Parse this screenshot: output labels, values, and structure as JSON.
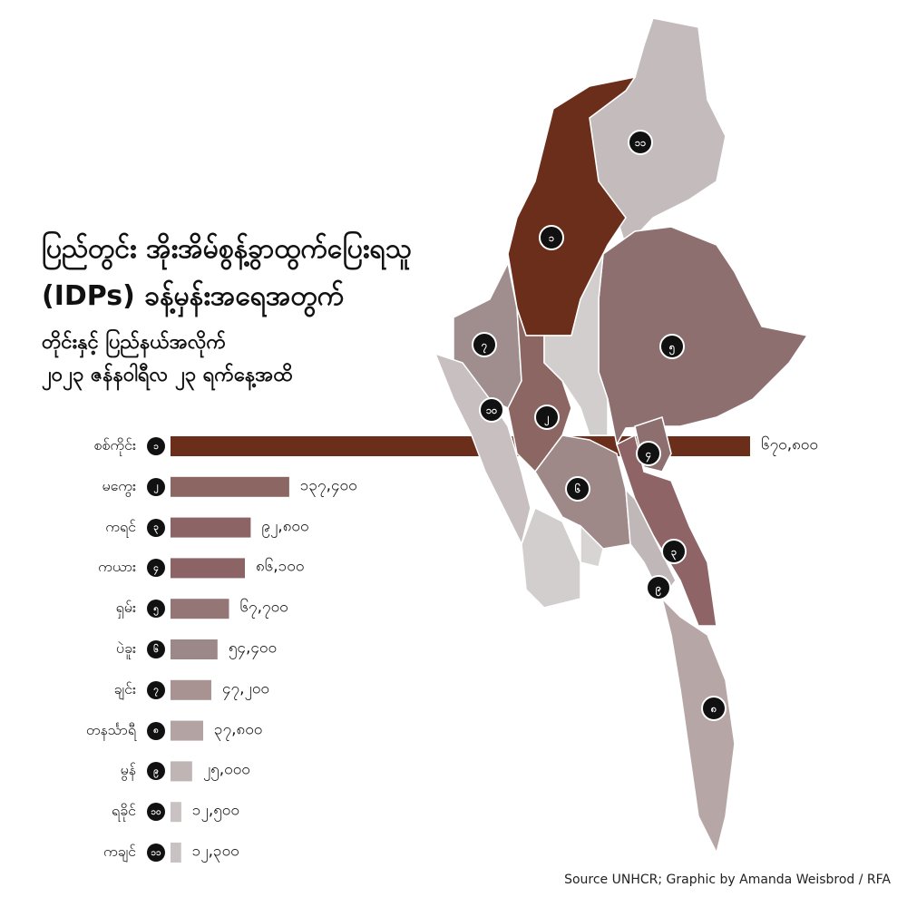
{
  "title": {
    "line1": "ပြည်တွင်း အိုးအိမ်စွန့်ခွာထွက်ပြေးရသူ",
    "line2": "(IDPs) ခန့်မှန်းအရေအတွက်",
    "line3": "တိုင်းနှင့် ပြည်နယ်အလိုက်",
    "line4": "၂၀၂၃ ဇန်နဝါရီလ ၂၃ ရက်နေ့အထိ"
  },
  "source": "Source UNHCR; Graphic by Amanda Weisbrod / RFA",
  "chart_data": {
    "type": "bar",
    "orientation": "horizontal",
    "grid": false,
    "categories": [
      "စစ်ကိုင်း",
      "မကွေး",
      "ကရင်",
      "ကယား",
      "ရှမ်း",
      "ပဲခူး",
      "ချင်း",
      "တနင်္သာရီ",
      "မွန်",
      "ရခိုင်",
      "ကချင်"
    ],
    "markers": [
      "၁",
      "၂",
      "၃",
      "၄",
      "၅",
      "၆",
      "၇",
      "၈",
      "၉",
      "၁၀",
      "၁၁"
    ],
    "values": [
      670800,
      137400,
      92800,
      86100,
      67700,
      54400,
      47200,
      37800,
      25000,
      12500,
      12300
    ],
    "value_labels": [
      "၆၇၀,၈၀၀",
      "၁၃၇,၄၀၀",
      "၉၂,၈၀၀",
      "၈၆,၁၀၀",
      "၆၇,၇၀၀",
      "၅၄,၄၀၀",
      "၄၇,၂၀၀",
      "၃၇,၈၀၀",
      "၂၅,၀၀၀",
      "၁၂,၅၀၀",
      "၁၂,၃၀၀"
    ],
    "colors": [
      "#6b2e1b",
      "#8c6662",
      "#8c6466",
      "#8c6466",
      "#947676",
      "#9c8888",
      "#a89292",
      "#b3a3a3",
      "#bfb5b5",
      "#c8c2c2",
      "#c8c2c2"
    ]
  },
  "map_colors": {
    "kachin": "#c4bcbc",
    "sagaing": "#6b2e1b",
    "shan": "#8e6f70",
    "chin": "#a08e8e",
    "magway": "#8c6662",
    "mandalay": "#d2cece",
    "rakhine": "#c8c0c0",
    "ayeyarwady": "#d2cece",
    "bago": "#9e8888",
    "yangon": "#d8d4d4",
    "kayah": "#8e6f70",
    "kayin": "#8e6466",
    "mon": "#c0b8b8",
    "tanintharyi": "#b7a6a6"
  }
}
